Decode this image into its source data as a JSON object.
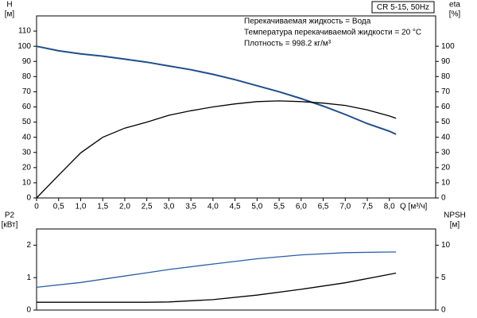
{
  "chart_data": [
    {
      "type": "line",
      "model": "CR 5-15, 50Hz",
      "annotations": [
        "Перекачиваемая жидкость = Вода",
        "Температура перекачиваемой жидкости = 20 °C",
        "Плотность = 998.2 кг/м³"
      ],
      "ylabel": "H",
      "yunit": "[м]",
      "y2label": "eta",
      "y2unit": "[%]",
      "xlabel": "Q [м³/ч]",
      "x": [
        0,
        0.5,
        1,
        1.5,
        2,
        2.5,
        3,
        3.5,
        4,
        4.5,
        5,
        5.5,
        6,
        6.5,
        7,
        7.5,
        8,
        8.15
      ],
      "xlim": [
        0,
        9.05
      ],
      "xticks": [
        0,
        {
          "value": 0.5,
          "label": "0,5"
        },
        {
          "value": 1,
          "label": "1,0"
        },
        {
          "value": 1.5,
          "label": "1,5"
        },
        {
          "value": 2,
          "label": "2,0"
        },
        {
          "value": 2.5,
          "label": "2,5"
        },
        {
          "value": 3,
          "label": "3,0"
        },
        {
          "value": 3.5,
          "label": "3,5"
        },
        {
          "value": 4,
          "label": "4,0"
        },
        {
          "value": 4.5,
          "label": "4,5"
        },
        {
          "value": 5,
          "label": "5,0"
        },
        {
          "value": 5.5,
          "label": "5,5"
        },
        {
          "value": 6,
          "label": "6,0"
        },
        {
          "value": 6.5,
          "label": "6,5"
        },
        {
          "value": 7,
          "label": "7,0"
        },
        {
          "value": 7.5,
          "label": "7,5"
        },
        {
          "value": 8,
          "label": "8,0"
        }
      ],
      "ylim": [
        0,
        120
      ],
      "yticks": [
        0,
        10,
        20,
        30,
        40,
        50,
        60,
        70,
        80,
        90,
        100,
        110
      ],
      "y2lim": [
        0,
        120
      ],
      "y2ticks": [
        0,
        10,
        20,
        30,
        40,
        50,
        60,
        70,
        80,
        90,
        100
      ],
      "series": [
        {
          "color": "#1f4e8c",
          "values": [
            100,
            97,
            95,
            93.5,
            91.5,
            89.5,
            87,
            84.5,
            81.5,
            78,
            74,
            70,
            65.5,
            60.5,
            55,
            49,
            44,
            42
          ]
        },
        {
          "color": "#000000",
          "axis": "y2",
          "values": [
            0,
            15,
            29.7,
            40,
            46,
            50,
            54.5,
            57.5,
            60,
            62,
            63.5,
            64,
            63.5,
            62.5,
            61,
            58,
            54,
            52.5
          ]
        }
      ]
    },
    {
      "type": "line",
      "ylabel": "P2",
      "yunit": "[кВт]",
      "y2label": "NPSH",
      "y2unit": "[м]",
      "x": [
        0,
        1,
        2,
        2.5,
        3,
        4,
        5,
        6,
        7,
        8,
        8.15
      ],
      "xlim": [
        0,
        9.05
      ],
      "ylim": [
        0,
        2.5
      ],
      "yticks": [
        0,
        1,
        2
      ],
      "y2lim": [
        0,
        12.5
      ],
      "y2ticks": [
        0,
        5,
        10
      ],
      "series": [
        {
          "color": "#2a5ea8",
          "values": [
            0.7,
            0.85,
            1.05,
            1.15,
            1.25,
            1.42,
            1.58,
            1.7,
            1.77,
            1.79,
            1.79
          ]
        },
        {
          "color": "#000000",
          "axis": "y2",
          "values": [
            1.2,
            1.2,
            1.2,
            1.2,
            1.25,
            1.6,
            2.3,
            3.2,
            4.2,
            5.5,
            5.7
          ]
        }
      ]
    }
  ]
}
